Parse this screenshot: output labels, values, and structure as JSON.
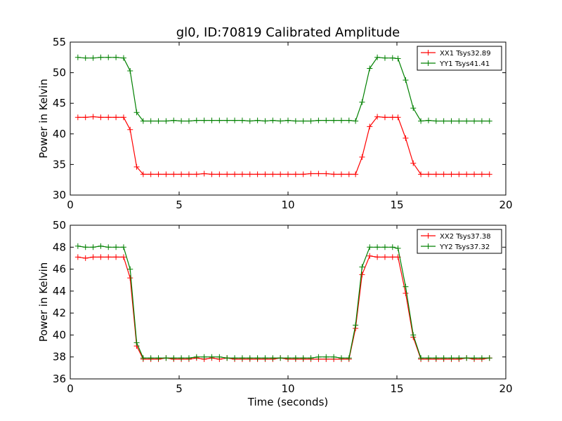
{
  "figure_title": "gl0, ID:70819 Calibrated Amplitude",
  "colors": {
    "red": "#ff0000",
    "green": "#008000",
    "axes": "#000000"
  },
  "chart_data": [
    {
      "type": "line",
      "title": "gl0, ID:70819 Calibrated Amplitude",
      "xlabel": "",
      "ylabel": "Power in Kelvin",
      "xlim": [
        0,
        20
      ],
      "ylim": [
        30,
        55
      ],
      "xticks": [
        0,
        5,
        10,
        15,
        20
      ],
      "yticks": [
        30,
        35,
        40,
        45,
        50,
        55
      ],
      "grid": false,
      "legend": "top-right",
      "marker": "+",
      "series": [
        {
          "name": "XX1 Tsys32.89",
          "color": "#ff0000",
          "x": [
            0.35,
            0.7,
            1.05,
            1.4,
            1.75,
            2.1,
            2.45,
            2.75,
            3.05,
            3.35,
            3.7,
            4.05,
            4.4,
            4.75,
            5.1,
            5.45,
            5.8,
            6.15,
            6.5,
            6.85,
            7.2,
            7.55,
            7.9,
            8.25,
            8.6,
            8.95,
            9.3,
            9.65,
            10.0,
            10.35,
            10.7,
            11.05,
            11.4,
            11.75,
            12.1,
            12.45,
            12.8,
            13.1,
            13.4,
            13.75,
            14.1,
            14.45,
            14.8,
            15.05,
            15.4,
            15.75,
            16.1,
            16.45,
            16.8,
            17.15,
            17.5,
            17.85,
            18.2,
            18.55,
            18.9,
            19.25
          ],
          "y": [
            42.7,
            42.7,
            42.8,
            42.7,
            42.7,
            42.7,
            42.7,
            40.7,
            34.6,
            33.4,
            33.4,
            33.4,
            33.4,
            33.4,
            33.4,
            33.4,
            33.4,
            33.5,
            33.4,
            33.4,
            33.4,
            33.4,
            33.4,
            33.4,
            33.4,
            33.4,
            33.4,
            33.4,
            33.4,
            33.4,
            33.4,
            33.5,
            33.5,
            33.5,
            33.4,
            33.4,
            33.4,
            33.4,
            36.2,
            41.2,
            42.8,
            42.7,
            42.7,
            42.7,
            39.3,
            35.2,
            33.4,
            33.4,
            33.4,
            33.4,
            33.4,
            33.4,
            33.4,
            33.4,
            33.4,
            33.4
          ]
        },
        {
          "name": "YY1 Tsys41.41",
          "color": "#008000",
          "x": [
            0.35,
            0.7,
            1.05,
            1.4,
            1.75,
            2.1,
            2.45,
            2.75,
            3.05,
            3.35,
            3.7,
            4.05,
            4.4,
            4.75,
            5.1,
            5.45,
            5.8,
            6.15,
            6.5,
            6.85,
            7.2,
            7.55,
            7.9,
            8.25,
            8.6,
            8.95,
            9.3,
            9.65,
            10.0,
            10.35,
            10.7,
            11.05,
            11.4,
            11.75,
            12.1,
            12.45,
            12.8,
            13.1,
            13.4,
            13.75,
            14.1,
            14.45,
            14.8,
            15.05,
            15.4,
            15.75,
            16.1,
            16.45,
            16.8,
            17.15,
            17.5,
            17.85,
            18.2,
            18.55,
            18.9,
            19.25
          ],
          "y": [
            52.5,
            52.4,
            52.4,
            52.5,
            52.5,
            52.5,
            52.4,
            50.3,
            43.5,
            42.1,
            42.1,
            42.1,
            42.1,
            42.2,
            42.1,
            42.1,
            42.2,
            42.2,
            42.2,
            42.2,
            42.2,
            42.2,
            42.2,
            42.1,
            42.2,
            42.1,
            42.2,
            42.1,
            42.2,
            42.1,
            42.1,
            42.1,
            42.2,
            42.2,
            42.2,
            42.2,
            42.2,
            42.1,
            45.2,
            50.7,
            52.5,
            52.4,
            52.4,
            52.3,
            48.8,
            44.2,
            42.1,
            42.2,
            42.1,
            42.1,
            42.1,
            42.1,
            42.1,
            42.1,
            42.1,
            42.1
          ]
        }
      ]
    },
    {
      "type": "line",
      "title": "",
      "xlabel": "Time (seconds)",
      "ylabel": "Power in Kelvin",
      "xlim": [
        0,
        20
      ],
      "ylim": [
        36,
        50
      ],
      "xticks": [
        0,
        5,
        10,
        15,
        20
      ],
      "yticks": [
        36,
        38,
        40,
        42,
        44,
        46,
        48,
        50
      ],
      "grid": false,
      "legend": "top-right",
      "marker": "+",
      "series": [
        {
          "name": "XX2 Tsys37.38",
          "color": "#ff0000",
          "x": [
            0.35,
            0.7,
            1.05,
            1.4,
            1.75,
            2.1,
            2.45,
            2.75,
            3.05,
            3.35,
            3.7,
            4.05,
            4.4,
            4.75,
            5.1,
            5.45,
            5.8,
            6.15,
            6.5,
            6.85,
            7.2,
            7.55,
            7.9,
            8.25,
            8.6,
            8.95,
            9.3,
            9.65,
            10.0,
            10.35,
            10.7,
            11.05,
            11.4,
            11.75,
            12.1,
            12.45,
            12.8,
            13.1,
            13.4,
            13.75,
            14.1,
            14.45,
            14.8,
            15.05,
            15.4,
            15.75,
            16.1,
            16.45,
            16.8,
            17.15,
            17.5,
            17.85,
            18.2,
            18.55,
            18.9,
            19.25
          ],
          "y": [
            47.1,
            47.0,
            47.1,
            47.1,
            47.1,
            47.1,
            47.1,
            45.2,
            39.0,
            37.8,
            37.8,
            37.8,
            37.9,
            37.8,
            37.8,
            37.8,
            37.9,
            37.8,
            37.9,
            37.8,
            37.9,
            37.8,
            37.8,
            37.8,
            37.8,
            37.8,
            37.8,
            37.9,
            37.8,
            37.8,
            37.8,
            37.8,
            37.8,
            37.8,
            37.8,
            37.8,
            37.8,
            40.6,
            45.5,
            47.2,
            47.1,
            47.1,
            47.1,
            47.1,
            43.8,
            39.8,
            37.8,
            37.8,
            37.8,
            37.8,
            37.8,
            37.8,
            37.9,
            37.8,
            37.8,
            37.9
          ]
        },
        {
          "name": "YY2 Tsys37.32",
          "color": "#008000",
          "x": [
            0.35,
            0.7,
            1.05,
            1.4,
            1.75,
            2.1,
            2.45,
            2.75,
            3.05,
            3.35,
            3.7,
            4.05,
            4.4,
            4.75,
            5.1,
            5.45,
            5.8,
            6.15,
            6.5,
            6.85,
            7.2,
            7.55,
            7.9,
            8.25,
            8.6,
            8.95,
            9.3,
            9.65,
            10.0,
            10.35,
            10.7,
            11.05,
            11.4,
            11.75,
            12.1,
            12.45,
            12.8,
            13.1,
            13.4,
            13.75,
            14.1,
            14.45,
            14.8,
            15.05,
            15.4,
            15.75,
            16.1,
            16.45,
            16.8,
            17.15,
            17.5,
            17.85,
            18.2,
            18.55,
            18.9,
            19.25
          ],
          "y": [
            48.1,
            48.0,
            48.0,
            48.1,
            48.0,
            48.0,
            48.0,
            46.0,
            39.3,
            37.9,
            37.9,
            37.9,
            37.9,
            37.9,
            37.9,
            37.9,
            38.0,
            38.0,
            38.0,
            38.0,
            37.9,
            37.9,
            37.9,
            37.9,
            37.9,
            37.9,
            37.9,
            37.9,
            37.9,
            37.9,
            37.9,
            37.9,
            38.0,
            38.0,
            38.0,
            37.9,
            37.9,
            40.9,
            46.2,
            48.0,
            48.0,
            48.0,
            48.0,
            47.9,
            44.4,
            40.0,
            37.9,
            37.9,
            37.9,
            37.9,
            37.9,
            37.9,
            37.9,
            37.9,
            37.9,
            37.9
          ]
        }
      ]
    }
  ]
}
